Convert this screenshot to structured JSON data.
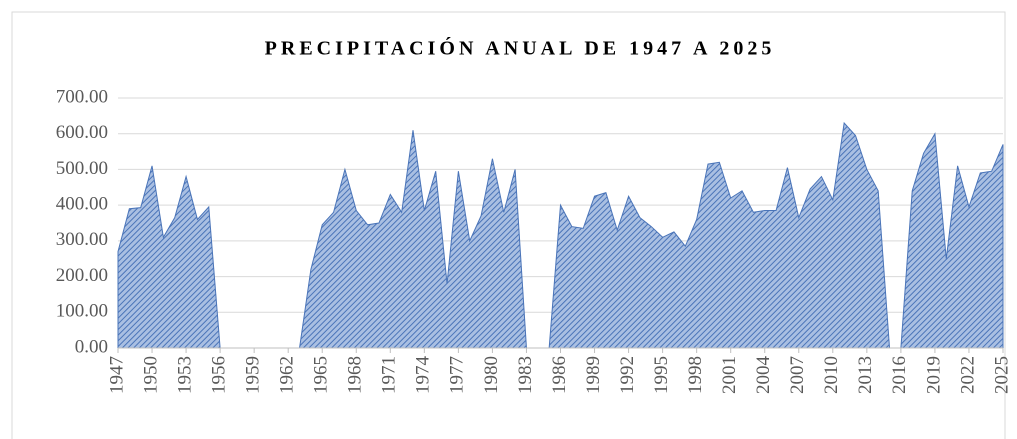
{
  "chart_data": {
    "type": "area",
    "title": "PRECIPITACIÓN ANUAL DE 1947 A 2025",
    "x": [
      1947,
      1948,
      1949,
      1950,
      1951,
      1952,
      1953,
      1954,
      1955,
      1956,
      1957,
      1958,
      1959,
      1960,
      1961,
      1962,
      1963,
      1964,
      1965,
      1966,
      1967,
      1968,
      1969,
      1970,
      1971,
      1972,
      1973,
      1974,
      1975,
      1976,
      1977,
      1978,
      1979,
      1980,
      1981,
      1982,
      1983,
      1984,
      1985,
      1986,
      1987,
      1988,
      1989,
      1990,
      1991,
      1992,
      1993,
      1994,
      1995,
      1996,
      1997,
      1998,
      1999,
      2000,
      2001,
      2002,
      2003,
      2004,
      2005,
      2006,
      2007,
      2008,
      2009,
      2010,
      2011,
      2012,
      2013,
      2014,
      2015,
      2016,
      2017,
      2018,
      2019,
      2020,
      2021,
      2022,
      2023,
      2024,
      2025
    ],
    "values": [
      270,
      390,
      393,
      510,
      310,
      365,
      480,
      360,
      395,
      0,
      0,
      0,
      0,
      0,
      0,
      0,
      0,
      220,
      345,
      380,
      500,
      385,
      345,
      350,
      430,
      380,
      610,
      385,
      495,
      180,
      495,
      300,
      370,
      530,
      380,
      500,
      0,
      0,
      0,
      400,
      340,
      335,
      425,
      435,
      330,
      425,
      365,
      340,
      310,
      325,
      285,
      360,
      515,
      520,
      420,
      440,
      380,
      385,
      385,
      505,
      365,
      445,
      480,
      415,
      630,
      595,
      500,
      440,
      0,
      0,
      440,
      545,
      600,
      250,
      510,
      395,
      490,
      495,
      570
    ],
    "color": "#4a74b8",
    "xlim": [
      1947,
      2025
    ],
    "xticks": [
      1947,
      1950,
      1953,
      1956,
      1959,
      1962,
      1965,
      1968,
      1971,
      1974,
      1977,
      1980,
      1983,
      1986,
      1989,
      1992,
      1995,
      1998,
      2001,
      2004,
      2007,
      2010,
      2013,
      2016,
      2019,
      2022,
      2025
    ],
    "ylim": [
      0,
      700
    ],
    "yticks": [
      {
        "value": 0,
        "label": "0.00"
      },
      {
        "value": 100,
        "label": "100.00"
      },
      {
        "value": 200,
        "label": "200.00"
      },
      {
        "value": 300,
        "label": "300.00"
      },
      {
        "value": 400,
        "label": "400.00"
      },
      {
        "value": 500,
        "label": "500.00"
      },
      {
        "value": 600,
        "label": "600.00"
      },
      {
        "value": 700,
        "label": "700.00"
      }
    ],
    "grid": true
  }
}
